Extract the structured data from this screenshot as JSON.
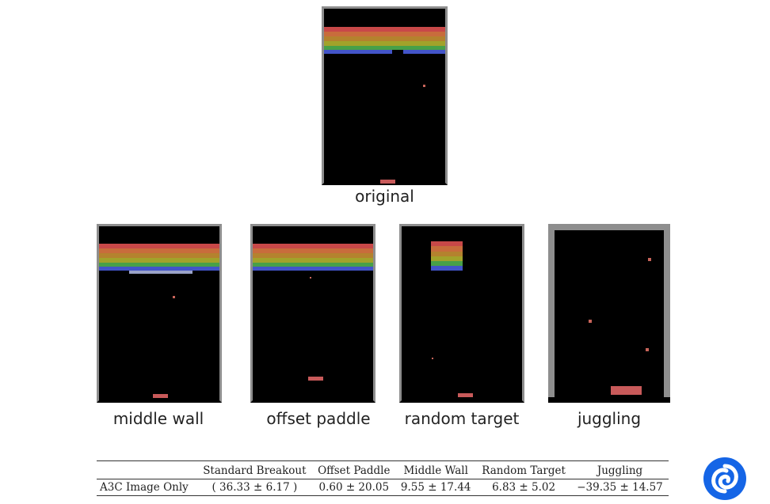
{
  "panels": {
    "original": {
      "caption": "original"
    },
    "middle_wall": {
      "caption": "middle wall"
    },
    "offset_paddle": {
      "caption": "offset paddle"
    },
    "random_target": {
      "caption": "random target"
    },
    "juggling": {
      "caption": "juggling"
    }
  },
  "brick_colors": [
    "#c84848",
    "#c86c3c",
    "#b4822e",
    "#a2a22a",
    "#48a048",
    "#4254c8"
  ],
  "paddle_color": "#c85a5a",
  "frame_color": "#8e8e8e",
  "table": {
    "headers": [
      "",
      "Standard Breakout",
      "Offset Paddle",
      "Middle Wall",
      "Random Target",
      "Juggling"
    ],
    "rows": [
      {
        "label": "A3C Image Only",
        "values": [
          "( 36.33 ± 6.17 )",
          "0.60 ± 20.05",
          "9.55 ± 17.44",
          "6.83 ± 5.02",
          "−39.35 ± 14.57"
        ]
      }
    ]
  },
  "logo": {
    "icon": "swirl-logo-icon",
    "color": "#1565e6"
  }
}
